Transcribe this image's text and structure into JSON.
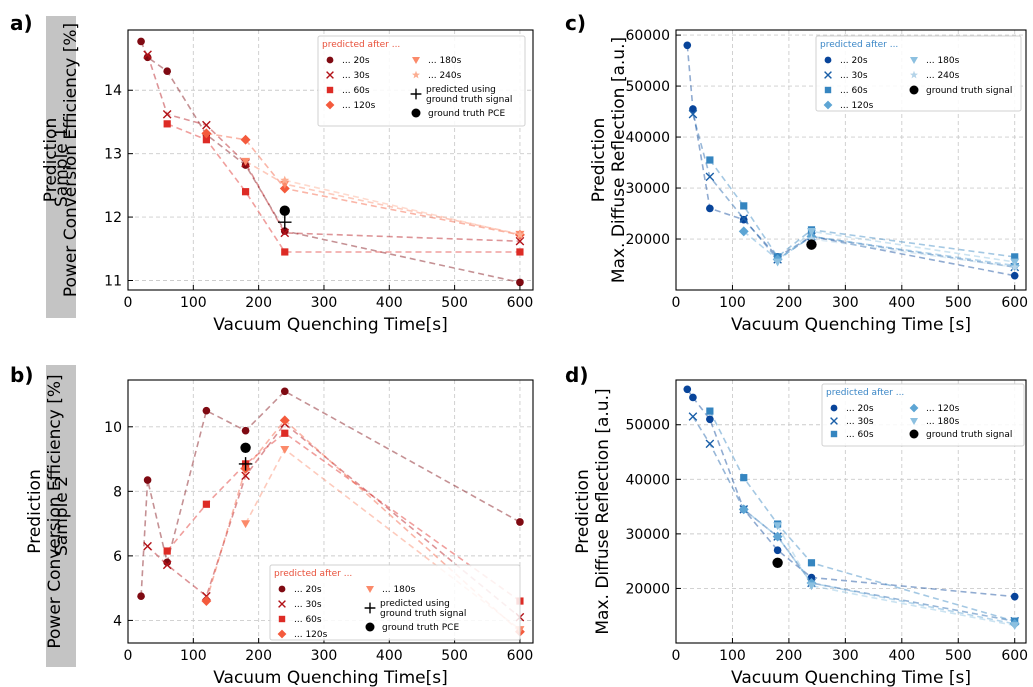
{
  "panel_labels": [
    "a)",
    "b)",
    "c)",
    "d)"
  ],
  "sample_labels": [
    "Sample 1",
    "Sample 2"
  ],
  "colors": {
    "reds": [
      "#7f0a12",
      "#b31218",
      "#dd2b25",
      "#f45a3c",
      "#fb8a6a",
      "#fcae92"
    ],
    "blues": [
      "#08449a",
      "#1a5fa8",
      "#3585c0",
      "#5da5d4",
      "#8cc0e0",
      "#b5d4e9"
    ],
    "ground_truth": "#000000",
    "legend_title_red": "#e8503a",
    "legend_title_blue": "#3a86c6",
    "sample_box": "#c4c4c4",
    "grid": "#cccccc"
  },
  "chart_data": [
    {
      "panel": "a)",
      "type": "line",
      "xlabel": "Vacuum Quenching Time[s]",
      "ylabel": "Prediction\nPower Conversion Efficiency [%]",
      "xlim": [
        0,
        620
      ],
      "ylim": [
        10.85,
        14.95
      ],
      "xticks": [
        0,
        100,
        200,
        300,
        400,
        500,
        600
      ],
      "yticks": [
        11,
        12,
        13,
        14
      ],
      "grid": true,
      "palette": "reds",
      "legend": {
        "title": "predicted after ...",
        "placement": "top-right",
        "columns": 2
      },
      "series": [
        {
          "name": "... 20s",
          "marker": "circle",
          "color_index": 0,
          "x": [
            20,
            30,
            60,
            120,
            180,
            240,
            600
          ],
          "y": [
            14.77,
            14.52,
            14.3,
            13.3,
            12.82,
            11.78,
            10.97
          ]
        },
        {
          "name": "... 30s",
          "marker": "x",
          "color_index": 1,
          "x": [
            30,
            60,
            120,
            180,
            240,
            600
          ],
          "y": [
            14.56,
            13.62,
            13.45,
            12.85,
            11.75,
            11.62
          ]
        },
        {
          "name": "... 60s",
          "marker": "square",
          "color_index": 2,
          "x": [
            60,
            120,
            180,
            240,
            600
          ],
          "y": [
            13.47,
            13.22,
            12.4,
            11.45,
            11.45
          ]
        },
        {
          "name": "... 120s",
          "marker": "diamond",
          "color_index": 3,
          "x": [
            120,
            180,
            240,
            600
          ],
          "y": [
            13.32,
            13.22,
            12.45,
            11.72
          ]
        },
        {
          "name": "... 180s",
          "marker": "triangle-down",
          "color_index": 4,
          "x": [
            180,
            240,
            600
          ],
          "y": [
            12.88,
            12.52,
            11.73
          ]
        },
        {
          "name": "... 240s",
          "marker": "star",
          "color_index": 5,
          "x": [
            240,
            600
          ],
          "y": [
            12.58,
            11.72
          ]
        }
      ],
      "prediction_gt_signal": {
        "name": "predicted using\nground truth signal",
        "x": 240,
        "y": 11.92
      },
      "ground_truth": {
        "name": "ground truth PCE",
        "x": 240,
        "y": 12.1
      }
    },
    {
      "panel": "b)",
      "type": "line",
      "xlabel": "Vacuum Quenching Time[s]",
      "ylabel": "Prediction\nPower Conversion Efficiency [%]",
      "xlim": [
        0,
        620
      ],
      "ylim": [
        3.3,
        11.45
      ],
      "xticks": [
        0,
        100,
        200,
        300,
        400,
        500,
        600
      ],
      "yticks": [
        4,
        6,
        8,
        10
      ],
      "grid": true,
      "palette": "reds",
      "legend": {
        "title": "predicted after ...",
        "placement": "lower-right",
        "columns": 2
      },
      "series": [
        {
          "name": "... 20s",
          "marker": "circle",
          "color_index": 0,
          "x": [
            20,
            30,
            60,
            120,
            180,
            240,
            600
          ],
          "y": [
            4.75,
            8.35,
            5.8,
            10.5,
            9.88,
            11.1,
            7.05
          ]
        },
        {
          "name": "... 30s",
          "marker": "x",
          "color_index": 1,
          "x": [
            30,
            60,
            120,
            180,
            240,
            600
          ],
          "y": [
            6.3,
            5.72,
            4.75,
            8.48,
            10.1,
            4.1
          ]
        },
        {
          "name": "... 60s",
          "marker": "square",
          "color_index": 2,
          "x": [
            60,
            120,
            180,
            240,
            600
          ],
          "y": [
            6.15,
            7.6,
            8.85,
            9.8,
            4.6
          ]
        },
        {
          "name": "... 120s",
          "marker": "diamond",
          "color_index": 3,
          "x": [
            120,
            180,
            240,
            600
          ],
          "y": [
            4.6,
            8.7,
            10.2,
            3.65
          ]
        },
        {
          "name": "... 180s",
          "marker": "triangle-down",
          "color_index": 4,
          "x": [
            180,
            240,
            600
          ],
          "y": [
            7.0,
            9.3,
            3.72
          ]
        }
      ],
      "prediction_gt_signal": {
        "name": "predicted using\nground truth signal",
        "x": 180,
        "y": 8.85
      },
      "ground_truth": {
        "name": "ground truth PCE",
        "x": 180,
        "y": 9.35
      }
    },
    {
      "panel": "c)",
      "type": "line",
      "xlabel": "Vacuum Quenching Time [s]",
      "ylabel": "Prediction\nMax. Diffuse Reflection [a.u.]",
      "xlim": [
        0,
        620
      ],
      "ylim": [
        10000,
        61000
      ],
      "xticks": [
        0,
        100,
        200,
        300,
        400,
        500,
        600
      ],
      "yticks": [
        20000,
        30000,
        40000,
        50000,
        60000
      ],
      "grid": true,
      "palette": "blues",
      "legend": {
        "title": "predicted after ...",
        "placement": "top-right",
        "columns": 2
      },
      "series": [
        {
          "name": "... 20s",
          "marker": "circle",
          "color_index": 0,
          "x": [
            20,
            30,
            60,
            120,
            180,
            240,
            600
          ],
          "y": [
            58000,
            45500,
            26000,
            23800,
            16500,
            20500,
            12800
          ]
        },
        {
          "name": "... 30s",
          "marker": "x",
          "color_index": 1,
          "x": [
            30,
            60,
            120,
            180,
            240,
            600
          ],
          "y": [
            44500,
            32200,
            24000,
            16000,
            20500,
            14500
          ]
        },
        {
          "name": "... 60s",
          "marker": "square",
          "color_index": 2,
          "x": [
            60,
            120,
            180,
            240,
            600
          ],
          "y": [
            35500,
            26500,
            16500,
            21800,
            16500
          ]
        },
        {
          "name": "... 120s",
          "marker": "diamond",
          "color_index": 3,
          "x": [
            120,
            180,
            240,
            600
          ],
          "y": [
            21500,
            16000,
            20500,
            14800
          ]
        },
        {
          "name": "... 180s",
          "marker": "triangle-down",
          "color_index": 4,
          "x": [
            180,
            240,
            600
          ],
          "y": [
            15500,
            21500,
            15500
          ]
        },
        {
          "name": "... 240s",
          "marker": "star",
          "color_index": 5,
          "x": [
            240,
            600
          ],
          "y": [
            20000,
            14500
          ]
        }
      ],
      "ground_truth": {
        "name": "ground truth signal",
        "x": 240,
        "y": 18900
      }
    },
    {
      "panel": "d)",
      "type": "line",
      "xlabel": "Vacuum Quenching Time [s]",
      "ylabel": "Prediction\nMax. Diffuse Reflection [a.u.]",
      "xlim": [
        0,
        620
      ],
      "ylim": [
        10000,
        58200
      ],
      "xticks": [
        0,
        100,
        200,
        300,
        400,
        500,
        600
      ],
      "yticks": [
        20000,
        30000,
        40000,
        50000
      ],
      "grid": true,
      "palette": "blues",
      "legend": {
        "title": "predicted after ...",
        "placement": "top-right",
        "columns": 2
      },
      "series": [
        {
          "name": "... 20s",
          "marker": "circle",
          "color_index": 0,
          "x": [
            20,
            30,
            60,
            120,
            180,
            240,
            600
          ],
          "y": [
            56500,
            55000,
            51000,
            34500,
            27000,
            22000,
            18500
          ]
        },
        {
          "name": "... 30s",
          "marker": "x",
          "color_index": 1,
          "x": [
            30,
            60,
            120,
            180,
            240,
            600
          ],
          "y": [
            51500,
            46500,
            34500,
            29500,
            21000,
            14000
          ]
        },
        {
          "name": "... 60s",
          "marker": "square",
          "color_index": 2,
          "x": [
            60,
            120,
            180,
            240,
            600
          ],
          "y": [
            52500,
            40300,
            31800,
            24700,
            14000
          ]
        },
        {
          "name": "... 120s",
          "marker": "diamond",
          "color_index": 3,
          "x": [
            120,
            180,
            240,
            600
          ],
          "y": [
            34500,
            29500,
            21000,
            13500
          ]
        },
        {
          "name": "... 180s",
          "marker": "triangle-down",
          "color_index": 4,
          "x": [
            180,
            240,
            600
          ],
          "y": [
            31500,
            20500,
            13200
          ]
        }
      ],
      "ground_truth": {
        "name": "ground truth signal",
        "x": 180,
        "y": 24700
      }
    }
  ]
}
